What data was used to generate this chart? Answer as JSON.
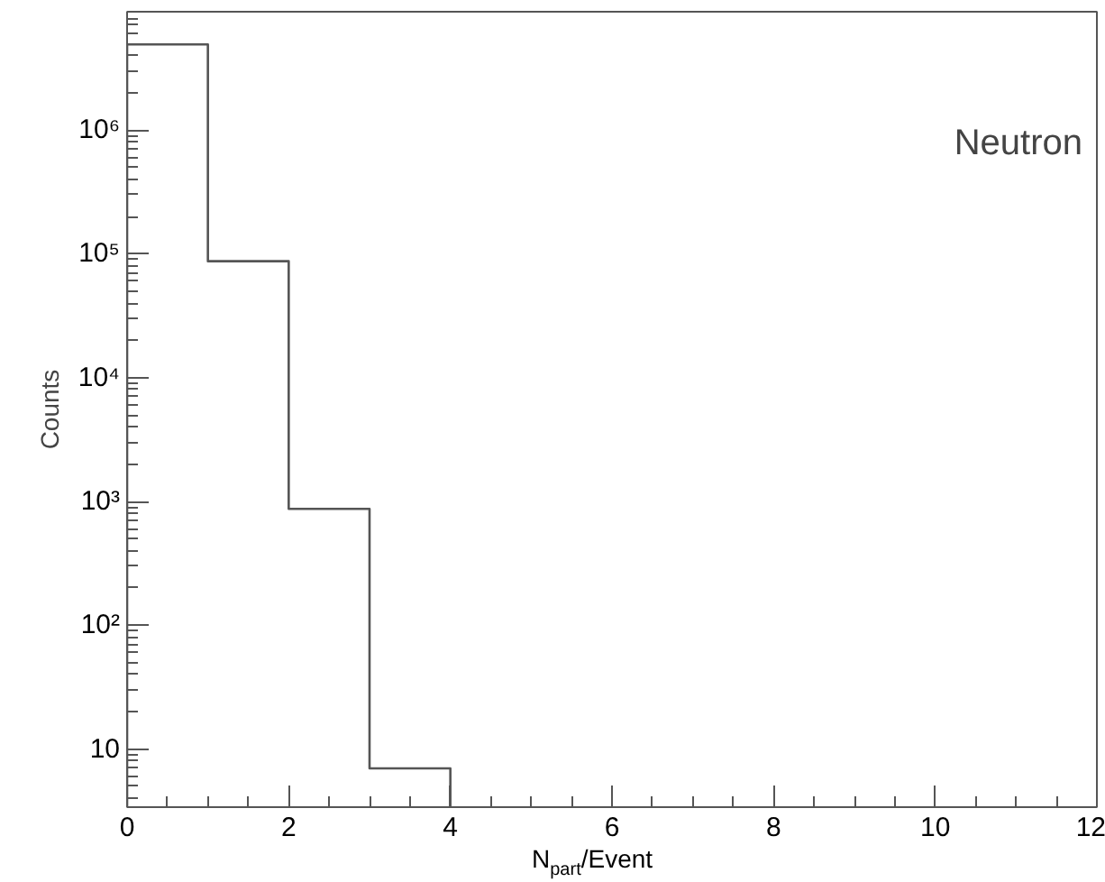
{
  "chart_data": {
    "type": "histogram",
    "xlabel": "N$_{part}$/Event",
    "ylabel": "Counts",
    "bins": [
      0,
      1,
      2,
      3,
      4
    ],
    "values": [
      4900000,
      87000,
      870,
      7
    ],
    "color": "#555555",
    "log": "y",
    "xlim": [
      0,
      12
    ],
    "xticks": [
      0,
      2,
      4,
      6,
      8,
      10,
      12
    ],
    "ylim": [
      3.4,
      9000000
    ],
    "yticks": [
      {
        "value": 10,
        "label": "10"
      },
      {
        "value": 100,
        "label": "10²"
      },
      {
        "value": 1000,
        "label": "10³"
      },
      {
        "value": 10000,
        "label": "10⁴"
      },
      {
        "value": 100000,
        "label": "10⁵"
      },
      {
        "value": 1000000,
        "label": "10⁶"
      }
    ],
    "grid": false,
    "annotations": [
      "Neutron"
    ]
  }
}
